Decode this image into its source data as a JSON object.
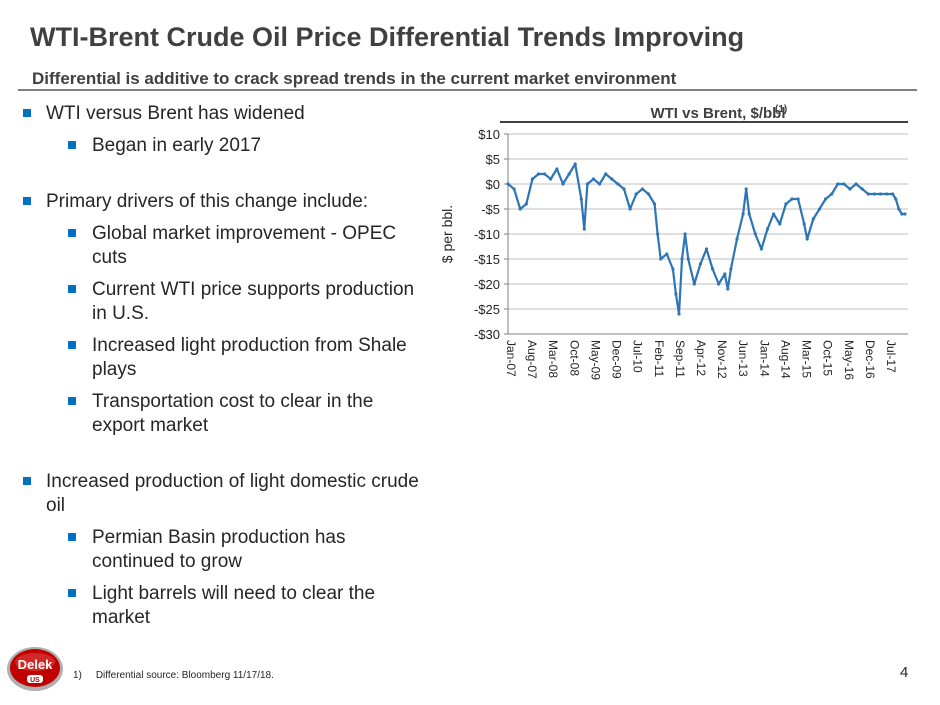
{
  "slide": {
    "title": "WTI-Brent Crude Oil Price Differential Trends Improving",
    "subtitle": "Differential is additive to crack spread trends in the current market environment",
    "page_number": "4",
    "footnote_marker": "1)",
    "footnote_text": "Differential source: Bloomberg 11/17/18.",
    "logo_text": "Delek",
    "logo_subtext": "US",
    "accent_color": "#0070c0",
    "series_color": "#2e75b6"
  },
  "bullets": [
    {
      "level": 1,
      "text": "WTI versus Brent has widened"
    },
    {
      "level": 2,
      "text": "Began in early 2017"
    },
    {
      "level": 0,
      "text": ""
    },
    {
      "level": 1,
      "text": "Primary drivers of this change include:"
    },
    {
      "level": 2,
      "text": "Global market improvement - OPEC cuts"
    },
    {
      "level": 2,
      "text": "Current WTI price supports production in U.S."
    },
    {
      "level": 2,
      "text": "Increased light production from Shale plays"
    },
    {
      "level": 2,
      "text": "Transportation cost to clear in the export market"
    },
    {
      "level": 0,
      "text": ""
    },
    {
      "level": 1,
      "text": "Increased production of light domestic crude oil"
    },
    {
      "level": 2,
      "text": "Permian Basin production has continued to grow"
    },
    {
      "level": 2,
      "text": "Light barrels will need to clear the market"
    }
  ],
  "chart_data": {
    "type": "line",
    "title": "WTI vs Brent, $/bbl",
    "title_superscript": "(1)",
    "ylabel": "$ per bbl.",
    "xlabel": "",
    "ylim": [
      -30,
      10
    ],
    "yticks": [
      10,
      5,
      0,
      -5,
      -10,
      -15,
      -20,
      -25,
      -30
    ],
    "ytick_labels": [
      "$10",
      "$5",
      "$0",
      "-$5",
      "-$10",
      "-$15",
      "-$20",
      "-$25",
      "-$30"
    ],
    "xlim": [
      "2007-01",
      "2017-12"
    ],
    "xtick_labels": [
      "Jan-07",
      "Aug-07",
      "Mar-08",
      "Oct-08",
      "May-09",
      "Dec-09",
      "Jul-10",
      "Feb-11",
      "Sep-11",
      "Apr-12",
      "Nov-12",
      "Jun-13",
      "Jan-14",
      "Aug-14",
      "Mar-15",
      "Oct-15",
      "May-16",
      "Dec-16",
      "Jul-17"
    ],
    "grid": "horizontal",
    "legend": "none",
    "series": [
      {
        "x": [
          "2007-01",
          "2007-03",
          "2007-05",
          "2007-07",
          "2007-09",
          "2007-11",
          "2008-01",
          "2008-03",
          "2008-05",
          "2008-07",
          "2008-09",
          "2008-11",
          "2009-01",
          "2009-02",
          "2009-03",
          "2009-05",
          "2009-07",
          "2009-09",
          "2009-11",
          "2010-01",
          "2010-03",
          "2010-05",
          "2010-07",
          "2010-09",
          "2010-11",
          "2011-01",
          "2011-02",
          "2011-03",
          "2011-05",
          "2011-07",
          "2011-08",
          "2011-09",
          "2011-10",
          "2011-11",
          "2011-12",
          "2012-02",
          "2012-04",
          "2012-06",
          "2012-08",
          "2012-10",
          "2012-12",
          "2013-01",
          "2013-02",
          "2013-04",
          "2013-06",
          "2013-07",
          "2013-08",
          "2013-10",
          "2013-12",
          "2014-02",
          "2014-04",
          "2014-06",
          "2014-08",
          "2014-10",
          "2014-12",
          "2015-02",
          "2015-03",
          "2015-05",
          "2015-07",
          "2015-09",
          "2015-11",
          "2016-01",
          "2016-03",
          "2016-05",
          "2016-07",
          "2016-09",
          "2016-11",
          "2017-01",
          "2017-03",
          "2017-05",
          "2017-07",
          "2017-08",
          "2017-09",
          "2017-10",
          "2017-11"
        ],
        "values": [
          0,
          -1,
          -5,
          -4,
          1,
          2,
          2,
          1,
          3,
          0,
          2,
          4,
          -3,
          -9,
          0,
          1,
          0,
          2,
          1,
          0,
          -1,
          -5,
          -2,
          -1,
          -2,
          -4,
          -10,
          -15,
          -14,
          -17,
          -22,
          -26,
          -15,
          -10,
          -15,
          -20,
          -16,
          -13,
          -17,
          -20,
          -18,
          -21,
          -17,
          -11,
          -6,
          -1,
          -6,
          -10,
          -13,
          -9,
          -6,
          -8,
          -4,
          -3,
          -3,
          -8,
          -11,
          -7,
          -5,
          -3,
          -2,
          0,
          0,
          -1,
          0,
          -1,
          -2,
          -2,
          -2,
          -2,
          -2,
          -3,
          -5,
          -6,
          -6
        ]
      }
    ]
  }
}
